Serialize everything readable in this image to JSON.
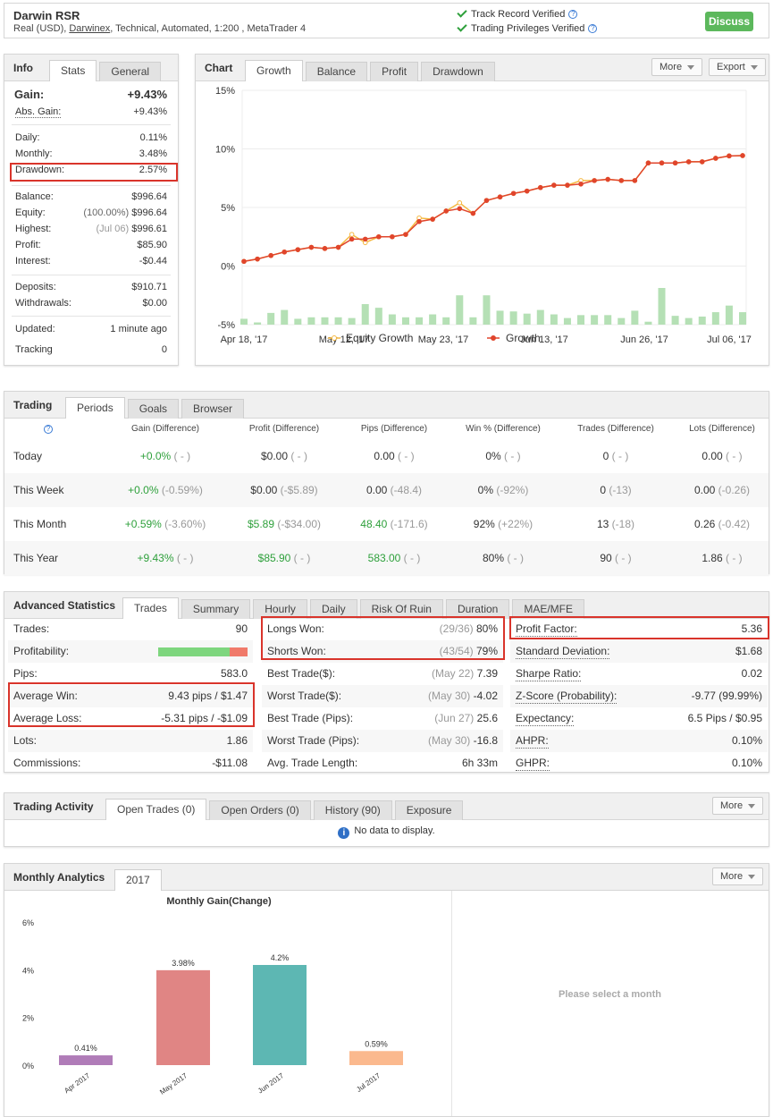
{
  "header": {
    "title": "Darwin RSR",
    "subtitle_prefix": "Real (USD), ",
    "subtitle_link": "Darwinex",
    "subtitle_suffix": ", Technical, Automated, 1:200 , MetaTrader 4",
    "track_record": "Track Record Verified",
    "trading_privileges": "Trading Privileges Verified",
    "discuss": "Discuss",
    "qm": "?"
  },
  "info": {
    "title": "Info",
    "tabs": [
      "Stats",
      "General"
    ],
    "gain_label": "Gain:",
    "gain_value": "+9.43%",
    "abs_gain_label": "Abs. Gain:",
    "abs_gain_value": "+9.43%",
    "daily_label": "Daily:",
    "daily_value": "0.11%",
    "monthly_label": "Monthly:",
    "monthly_value": "3.48%",
    "drawdown_label": "Drawdown:",
    "drawdown_value": "2.57%",
    "balance_label": "Balance:",
    "balance_value": "$996.64",
    "equity_label": "Equity:",
    "equity_note": "(100.00%)",
    "equity_value": "$996.64",
    "highest_label": "Highest:",
    "highest_note": "(Jul 06)",
    "highest_value": "$996.61",
    "profit_label": "Profit:",
    "profit_value": "$85.90",
    "interest_label": "Interest:",
    "interest_value": "-$0.44",
    "deposits_label": "Deposits:",
    "deposits_value": "$910.71",
    "withdrawals_label": "Withdrawals:",
    "withdrawals_value": "$0.00",
    "updated_label": "Updated:",
    "updated_value": "1 minute ago",
    "tracking_label": "Tracking",
    "tracking_value": "0"
  },
  "chart_panel": {
    "title": "Chart",
    "tabs": [
      "Growth",
      "Balance",
      "Profit",
      "Drawdown"
    ],
    "more": "More",
    "export": "Export"
  },
  "chart_data": [
    {
      "type": "line",
      "y_ticks": [
        "15%",
        "10%",
        "5%",
        "0%",
        "-5%"
      ],
      "ylim": [
        -5,
        15
      ],
      "x_ticks": [
        "Apr 18, '17",
        "May 12, '17",
        "May 23, '17",
        "Jun 13, '17",
        "Jun 26, '17",
        "Jul 06, '17"
      ],
      "legend": [
        "Equity Growth",
        "Growth"
      ],
      "legend_position": "bottom",
      "colors": {
        "equity": "#f5b942",
        "growth": "#e0452c",
        "bars": "#b5e0b5"
      },
      "series": [
        {
          "name": "Growth",
          "values": [
            0.4,
            0.6,
            0.9,
            1.2,
            1.4,
            1.6,
            1.5,
            1.6,
            2.3,
            2.3,
            2.5,
            2.5,
            2.7,
            3.8,
            4.0,
            4.7,
            4.9,
            4.5,
            5.6,
            5.9,
            6.2,
            6.4,
            6.7,
            6.9,
            6.9,
            7.0,
            7.3,
            7.4,
            7.3,
            7.3,
            8.8,
            8.8,
            8.8,
            8.9,
            8.9,
            9.2,
            9.4,
            9.43
          ]
        },
        {
          "name": "Equity Growth",
          "values": [
            0.4,
            0.6,
            0.9,
            1.2,
            1.4,
            1.6,
            1.5,
            1.6,
            2.7,
            2.0,
            2.5,
            2.5,
            2.7,
            4.1,
            4.0,
            4.7,
            5.4,
            4.5,
            5.6,
            5.9,
            6.2,
            6.4,
            6.7,
            6.9,
            6.9,
            7.3,
            7.3,
            7.4,
            7.3,
            7.3,
            8.8,
            8.8,
            8.8,
            8.9,
            8.9,
            9.2,
            9.4,
            9.43
          ]
        },
        {
          "name": "",
          "values": [
            0.8,
            0.3,
            1.6,
            2.0,
            0.8,
            1.0,
            1.0,
            1.0,
            0.9,
            2.8,
            2.3,
            1.4,
            1.0,
            1.0,
            1.4,
            1.0,
            4.0,
            1.0,
            4.0,
            1.9,
            1.8,
            1.5,
            2.0,
            1.4,
            0.9,
            1.3,
            1.3,
            1.3,
            0.9,
            1.9,
            0.4,
            5.0,
            1.2,
            0.9,
            1.1,
            1.7,
            2.6,
            1.7
          ]
        }
      ]
    },
    {
      "type": "bar",
      "title": "Monthly Gain(Change)",
      "categories": [
        "Apr 2017",
        "May 2017",
        "Jun 2017",
        "Jul 2017"
      ],
      "values": [
        0.41,
        3.98,
        4.2,
        0.59
      ],
      "labels": [
        "0.41%",
        "3.98%",
        "4.2%",
        "0.59%"
      ],
      "colors": [
        "#b07cb8",
        "#e08584",
        "#5db7b3",
        "#fbb98e"
      ],
      "y_ticks": [
        "6%",
        "4%",
        "2%",
        "0%"
      ],
      "ylim": [
        0,
        6
      ]
    }
  ],
  "trading": {
    "title": "Trading",
    "tabs": [
      "Periods",
      "Goals",
      "Browser"
    ],
    "qm": "?",
    "columns": [
      "Gain (Difference)",
      "Profit (Difference)",
      "Pips (Difference)",
      "Win % (Difference)",
      "Trades (Difference)",
      "Lots (Difference)"
    ],
    "rows": [
      {
        "label": "Today",
        "cells": [
          [
            "+0.0%",
            "( - )"
          ],
          [
            "$0.00",
            "( - )"
          ],
          [
            "0.00",
            "( - )"
          ],
          [
            "0%",
            "( - )"
          ],
          [
            "0",
            "( - )"
          ],
          [
            "0.00",
            "( - )"
          ]
        ]
      },
      {
        "label": "This Week",
        "cells": [
          [
            "+0.0%",
            "(-0.59%)"
          ],
          [
            "$0.00",
            "(-$5.89)"
          ],
          [
            "0.00",
            "(-48.4)"
          ],
          [
            "0%",
            "(-92%)"
          ],
          [
            "0",
            "(-13)"
          ],
          [
            "0.00",
            "(-0.26)"
          ]
        ]
      },
      {
        "label": "This Month",
        "cells": [
          [
            "+0.59%",
            "(-3.60%)"
          ],
          [
            "$5.89",
            "(-$34.00)"
          ],
          [
            "48.40",
            "(-171.6)"
          ],
          [
            "92%",
            "(+22%)"
          ],
          [
            "13",
            "(-18)"
          ],
          [
            "0.26",
            "(-0.42)"
          ]
        ]
      },
      {
        "label": "This Year",
        "cells": [
          [
            "+9.43%",
            "( - )"
          ],
          [
            "$85.90",
            "( - )"
          ],
          [
            "583.00",
            "( - )"
          ],
          [
            "80%",
            "( - )"
          ],
          [
            "90",
            "( - )"
          ],
          [
            "1.86",
            "( - )"
          ]
        ]
      }
    ]
  },
  "advanced": {
    "title": "Advanced Statistics",
    "tabs": [
      "Trades",
      "Summary",
      "Hourly",
      "Daily",
      "Risk Of Ruin",
      "Duration",
      "MAE/MFE"
    ],
    "profitability_win_ratio": 0.8,
    "col1": [
      {
        "k": "Trades:",
        "v": "90"
      },
      {
        "k": "Profitability:",
        "v": ""
      },
      {
        "k": "Pips:",
        "v": "583.0"
      },
      {
        "k": "Average Win:",
        "v": "9.43 pips / $1.47"
      },
      {
        "k": "Average Loss:",
        "v": "-5.31 pips / -$1.09"
      },
      {
        "k": "Lots:",
        "v": "1.86"
      },
      {
        "k": "Commissions:",
        "v": "-$11.08"
      }
    ],
    "col2": [
      {
        "k": "Longs Won:",
        "n": "(29/36)",
        "v": "80%"
      },
      {
        "k": "Shorts Won:",
        "n": "(43/54)",
        "v": "79%"
      },
      {
        "k": "Best Trade($):",
        "n": "(May 22)",
        "v": "7.39"
      },
      {
        "k": "Worst Trade($):",
        "n": "(May 30)",
        "v": "-4.02"
      },
      {
        "k": "Best Trade (Pips):",
        "n": "(Jun 27)",
        "v": "25.6"
      },
      {
        "k": "Worst Trade (Pips):",
        "n": "(May 30)",
        "v": "-16.8"
      },
      {
        "k": "Avg. Trade Length:",
        "n": "",
        "v": "6h 33m"
      }
    ],
    "col3": [
      {
        "k": "Profit Factor:",
        "v": "5.36"
      },
      {
        "k": "Standard Deviation:",
        "v": "$1.68"
      },
      {
        "k": "Sharpe Ratio:",
        "v": "0.02"
      },
      {
        "k": "Z-Score (Probability):",
        "v": "-9.77 (99.99%)"
      },
      {
        "k": "Expectancy:",
        "v": "6.5 Pips / $0.95"
      },
      {
        "k": "AHPR:",
        "v": "0.10%"
      },
      {
        "k": "GHPR:",
        "v": "0.10%"
      }
    ]
  },
  "activity": {
    "title": "Trading Activity",
    "tabs": [
      "Open Trades (0)",
      "Open Orders (0)",
      "History (90)",
      "Exposure"
    ],
    "more": "More",
    "no_data": "No data to display.",
    "info_glyph": "i"
  },
  "monthly": {
    "title": "Monthly Analytics",
    "tabs": [
      "2017"
    ],
    "more": "More",
    "select_msg": "Please select a month"
  }
}
